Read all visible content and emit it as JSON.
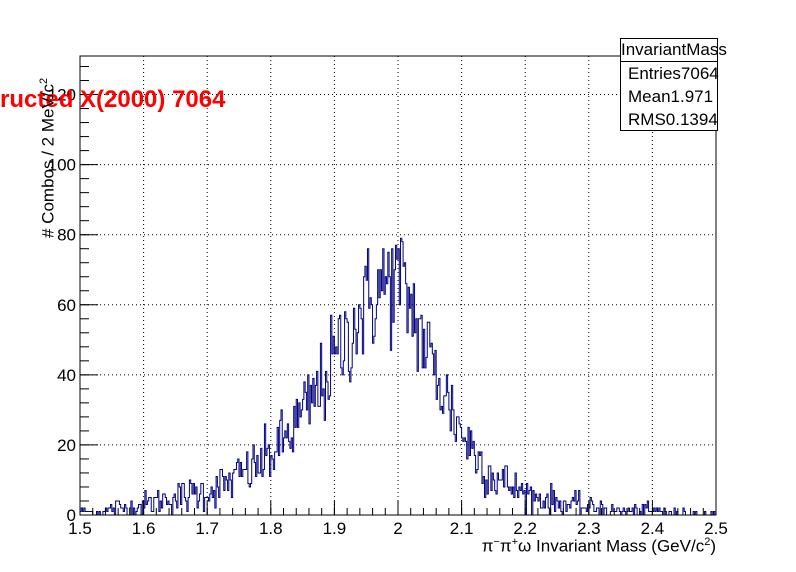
{
  "chart_data": {
    "type": "bar",
    "overlay_text": "ructed X(2000) 7064",
    "xlabel_parts": {
      "pre": "π",
      "sup1": "−",
      "mid": "π",
      "sup2": "+",
      "post": "ω Invariant Mass (GeV/c",
      "sup3": "2",
      "end": ")"
    },
    "ylabel_parts": {
      "pre": "# Combos / 2 MeV/c",
      "sup": "2"
    },
    "xlim": [
      1.5,
      2.5
    ],
    "ylim": [
      0,
      131
    ],
    "x_ticks": [
      "1.5",
      "1.6",
      "1.7",
      "1.8",
      "1.9",
      "2",
      "2.1",
      "2.2",
      "2.3",
      "2.4",
      "2.5"
    ],
    "y_ticks": [
      "0",
      "20",
      "40",
      "60",
      "80",
      "100",
      "120"
    ],
    "grid": true,
    "bin_width": 0.002,
    "line_color": "#000080",
    "stats": {
      "title": "InvariantMass",
      "rows": [
        {
          "label": "Entries",
          "value": "7064"
        },
        {
          "label": "Mean",
          "value": "1.971"
        },
        {
          "label": "RMS",
          "value": "0.1394"
        }
      ]
    },
    "x": [
      1.5,
      1.52,
      1.54,
      1.56,
      1.58,
      1.6,
      1.62,
      1.64,
      1.66,
      1.68,
      1.7,
      1.72,
      1.74,
      1.76,
      1.78,
      1.8,
      1.82,
      1.84,
      1.86,
      1.88,
      1.9,
      1.92,
      1.94,
      1.96,
      1.98,
      2.0,
      2.02,
      2.04,
      2.06,
      2.08,
      2.1,
      2.12,
      2.14,
      2.16,
      2.18,
      2.2,
      2.22,
      2.24,
      2.26,
      2.28,
      2.3,
      2.32,
      2.34,
      2.36,
      2.38,
      2.4,
      2.42,
      2.44,
      2.46,
      2.48,
      2.5
    ],
    "values": [
      1,
      1,
      1,
      2,
      2,
      3,
      4,
      5,
      5,
      6,
      7,
      8,
      10,
      12,
      14,
      17,
      21,
      26,
      31,
      37,
      44,
      51,
      57,
      62,
      66,
      68,
      60,
      50,
      40,
      32,
      24,
      18,
      13,
      10,
      8,
      6,
      5,
      4,
      3,
      3,
      2,
      2,
      1,
      1,
      1,
      1,
      1,
      0,
      0,
      0,
      0
    ]
  }
}
